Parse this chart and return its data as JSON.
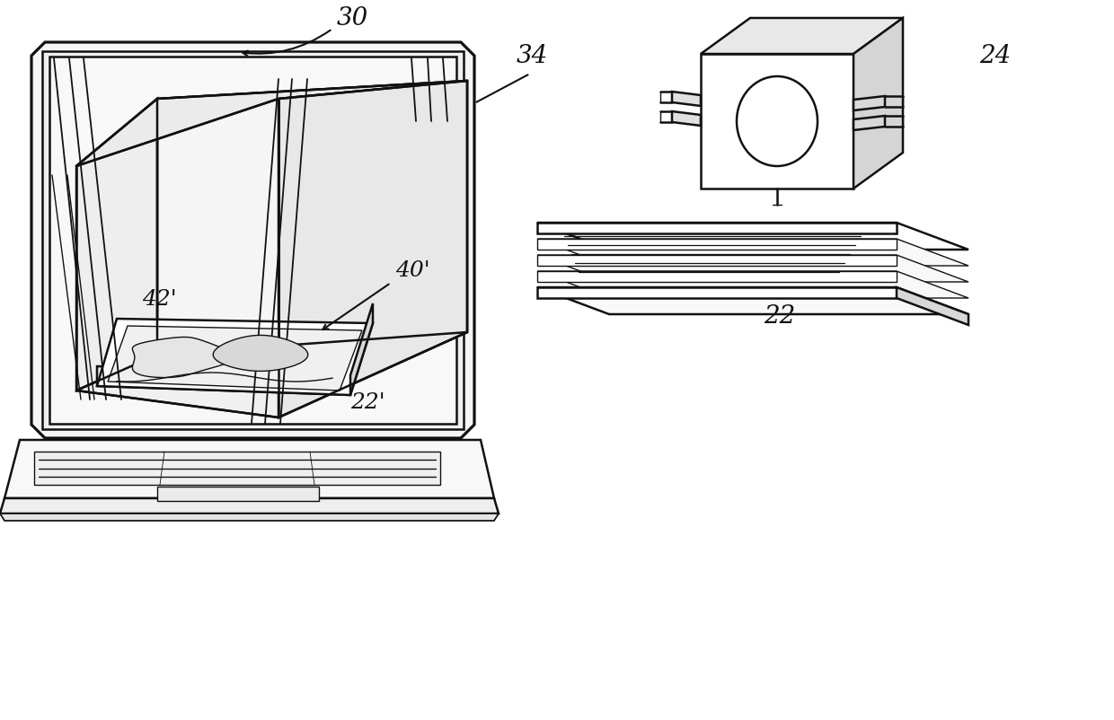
{
  "bg_color": "#ffffff",
  "lc": "#111111",
  "lw": 1.8,
  "tlw": 1.0,
  "lw2": 1.3,
  "label_30": "30",
  "label_34": "34",
  "label_24": "24",
  "label_22": "22",
  "label_40p": "40'",
  "label_42p": "42'",
  "label_22p": "22'"
}
